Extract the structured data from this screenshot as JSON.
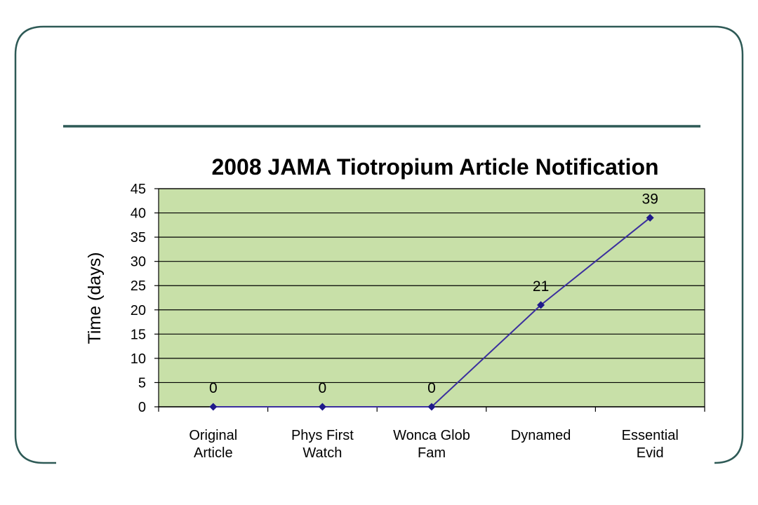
{
  "colors": {
    "frame": "#2e5a56",
    "rule": "#2e5a56",
    "plot_bg": "#c8e0a8",
    "gridline": "#000000",
    "series_line": "#3b2f9e",
    "marker": "#1f1a8a"
  },
  "chart_data": {
    "type": "line",
    "title": "2008 JAMA Tiotropium Article Notification",
    "xlabel": "",
    "ylabel": "Time (days)",
    "ylim": [
      0,
      45
    ],
    "y_ticks": [
      0,
      5,
      10,
      15,
      20,
      25,
      30,
      35,
      40,
      45
    ],
    "grid": true,
    "legend": "none",
    "categories": [
      [
        "Original",
        "Article"
      ],
      [
        "Phys First",
        "Watch"
      ],
      [
        "Wonca Glob",
        "Fam"
      ],
      [
        "Dynamed"
      ],
      [
        "Essential",
        "Evid"
      ]
    ],
    "series": [
      {
        "values": [
          0,
          0,
          0,
          21,
          39
        ],
        "data_labels": [
          "0",
          "0",
          "0",
          "21",
          "39"
        ]
      }
    ]
  }
}
